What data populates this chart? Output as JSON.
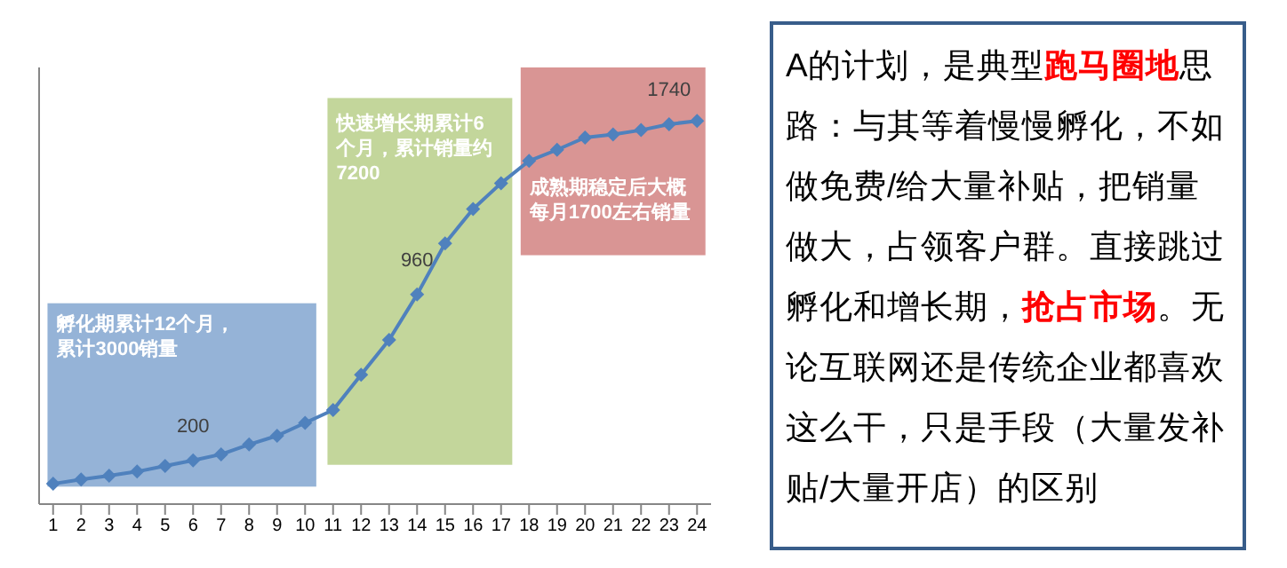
{
  "chart_data": [
    {
      "type": "line",
      "x": [
        1,
        2,
        3,
        4,
        5,
        6,
        7,
        8,
        9,
        10,
        11,
        12,
        13,
        14,
        15,
        16,
        17,
        18,
        19,
        20,
        21,
        22,
        23,
        24
      ],
      "series": [
        {
          "color": "#4f81bd",
          "values": [
            93,
            113,
            130,
            149,
            175,
            200,
            228,
            273,
            313,
            372,
            431,
            592,
            752,
            960,
            1194,
            1352,
            1470,
            1572,
            1623,
            1679,
            1693,
            1713,
            1740,
            1755
          ],
          "value_labels": [
            null,
            null,
            null,
            null,
            null,
            "200",
            null,
            null,
            null,
            null,
            null,
            null,
            null,
            "960",
            null,
            null,
            null,
            null,
            null,
            null,
            null,
            null,
            "1740",
            null
          ]
        }
      ],
      "xlim": [
        0.5,
        24.5
      ],
      "xticks": [
        1,
        2,
        3,
        4,
        5,
        6,
        7,
        8,
        9,
        10,
        11,
        12,
        13,
        14,
        15,
        16,
        17,
        18,
        19,
        20,
        21,
        22,
        23,
        24
      ],
      "ylim": [
        0,
        2000
      ],
      "tick_labels": "x",
      "marker": "diamond",
      "line_style": "solid",
      "bands": [
        {
          "axis": "x",
          "from": 0.8,
          "to": 10.4,
          "label": "孵化期累计12个月，累计3000销量",
          "color": "#95b3d7"
        },
        {
          "axis": "x",
          "from": 10.8,
          "to": 17.4,
          "label": "快速增长期累计6个月，累计销量约7200",
          "color": "#c3d69b"
        },
        {
          "axis": "x",
          "from": 17.7,
          "to": 24.3,
          "label": "成熟期稳定后大概每月1700左右销量",
          "color": "#d99594"
        }
      ]
    },
    {
      "type": "other",
      "annotations": [
        "A的计划，是典型",
        "跑马圈地",
        "思路：与其等着慢慢孵化，不如做免费/给大量补贴，把销量做大，占领客户群。直接跳过孵化和增长期，",
        "抢占市场",
        "。无论互联网还是传统企业都喜欢这么干，只是手段（大量发补贴/大量开店）的区别"
      ]
    }
  ]
}
